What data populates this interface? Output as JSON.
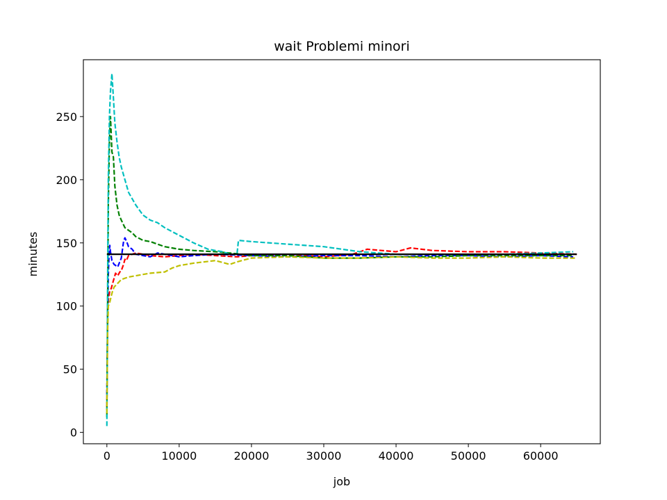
{
  "chart_data": {
    "type": "line",
    "title": "wait Problemi minori",
    "xlabel": "job",
    "ylabel": "minutes",
    "xlim": [
      -3250,
      68250
    ],
    "ylim": [
      -9,
      295
    ],
    "xticks": [
      0,
      10000,
      20000,
      30000,
      40000,
      50000,
      60000
    ],
    "xtick_labels": [
      "0",
      "10000",
      "20000",
      "30000",
      "40000",
      "50000",
      "60000"
    ],
    "yticks": [
      0,
      50,
      100,
      150,
      200,
      250
    ],
    "ytick_labels": [
      "0",
      "50",
      "100",
      "150",
      "200",
      "250"
    ],
    "grid": false,
    "legend": "none",
    "series": [
      {
        "color": "#ff0000",
        "style": "dashed",
        "x": [
          0,
          100,
          200,
          400,
          600,
          800,
          1000,
          1200,
          1500,
          1800,
          2000,
          2300,
          2500,
          2700,
          3000,
          4000,
          5000,
          6000,
          8000,
          10000,
          12000,
          15000,
          18000,
          20000,
          25000,
          30000,
          34000,
          36000,
          38000,
          40000,
          42000,
          45000,
          50000,
          55000,
          60000,
          65000
        ],
        "y": [
          20,
          90,
          105,
          112,
          114,
          118,
          122,
          126,
          124,
          127,
          128,
          133,
          137,
          136,
          140,
          142,
          141,
          140,
          139,
          140,
          141,
          140,
          139,
          140,
          141,
          139,
          141,
          145,
          144,
          143,
          146,
          144,
          143,
          143,
          142,
          141
        ]
      },
      {
        "color": "#0000ff",
        "style": "dashed",
        "x": [
          0,
          100,
          200,
          300,
          400,
          500,
          700,
          1000,
          1500,
          2000,
          2300,
          2500,
          2800,
          3000,
          3500,
          4000,
          5000,
          6000,
          7000,
          8000,
          10000,
          12000,
          15000,
          20000,
          25000,
          30000,
          35000,
          40000,
          45000,
          50000,
          55000,
          60000,
          64500
        ],
        "y": [
          30,
          95,
          125,
          140,
          148,
          143,
          136,
          133,
          131,
          138,
          151,
          154,
          150,
          147,
          145,
          141,
          140,
          139,
          142,
          141,
          139,
          140,
          141,
          140,
          139,
          140,
          140,
          139,
          140,
          140,
          139,
          140,
          139
        ]
      },
      {
        "color": "#008000",
        "style": "dashed",
        "x": [
          0,
          100,
          200,
          350,
          500,
          700,
          900,
          1100,
          1400,
          1700,
          2000,
          2500,
          3000,
          3500,
          4000,
          5000,
          6000,
          7000,
          8000,
          10000,
          12000,
          15000,
          17000,
          20000,
          25000,
          30000,
          35000,
          40000,
          45000,
          50000,
          55000,
          60000,
          64500
        ],
        "y": [
          12,
          100,
          180,
          230,
          250,
          222,
          218,
          195,
          180,
          172,
          168,
          162,
          160,
          158,
          155,
          152,
          151,
          149,
          147,
          145,
          144,
          143,
          142,
          140,
          140,
          138,
          138,
          139,
          139,
          140,
          140,
          140,
          140
        ]
      },
      {
        "color": "#00bfbf",
        "style": "dashed",
        "x": [
          0,
          100,
          200,
          350,
          500,
          700,
          900,
          1100,
          1400,
          1700,
          2000,
          2500,
          3000,
          4000,
          5000,
          6000,
          7000,
          8000,
          10000,
          12000,
          14000,
          16000,
          17000,
          18000,
          18200,
          20000,
          25000,
          30000,
          35000,
          40000,
          45000,
          50000,
          55000,
          60000,
          64500
        ],
        "y": [
          5,
          120,
          200,
          250,
          270,
          284,
          265,
          245,
          230,
          218,
          210,
          200,
          190,
          180,
          172,
          168,
          166,
          162,
          156,
          150,
          145,
          143,
          141,
          141,
          152,
          151,
          149,
          147,
          143,
          141,
          141,
          141,
          141,
          142,
          143
        ]
      },
      {
        "color": "#bfbf00",
        "style": "dashed",
        "x": [
          0,
          100,
          200,
          400,
          600,
          800,
          1000,
          1500,
          2000,
          3000,
          4000,
          5000,
          6000,
          8000,
          9000,
          10000,
          12000,
          15000,
          17000,
          18000,
          20000,
          25000,
          30000,
          35000,
          40000,
          45000,
          50000,
          55000,
          60000,
          65000
        ],
        "y": [
          15,
          80,
          100,
          103,
          108,
          112,
          115,
          118,
          121,
          123,
          124,
          125,
          126,
          127,
          130,
          132,
          134,
          136,
          133,
          135,
          138,
          139,
          138,
          138,
          139,
          138,
          138,
          139,
          138,
          138
        ]
      },
      {
        "color": "#000000",
        "style": "solid",
        "x": [
          0,
          65000
        ],
        "y": [
          141,
          141
        ]
      }
    ]
  }
}
